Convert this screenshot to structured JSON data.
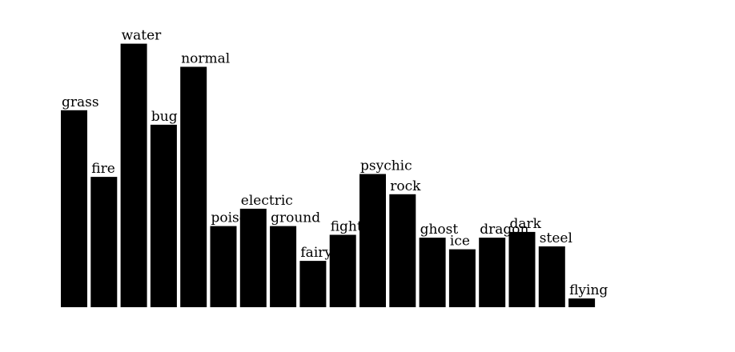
{
  "chart_data": {
    "type": "bar",
    "title": "",
    "xlabel": "",
    "ylabel": "",
    "ylim": [
      0,
      100
    ],
    "grid": false,
    "legend": "none",
    "bar_color": "#000000",
    "categories": [
      "grass",
      "fire",
      "water",
      "bug",
      "normal",
      "poison",
      "electric",
      "ground",
      "fairy",
      "fighting",
      "psychic",
      "rock",
      "ghost",
      "ice",
      "dragon",
      "dark",
      "steel",
      "flying"
    ],
    "values": [
      68,
      45,
      91,
      63,
      83,
      28,
      34,
      28,
      16,
      25,
      46,
      39,
      24,
      20,
      24,
      26,
      21,
      3
    ]
  }
}
